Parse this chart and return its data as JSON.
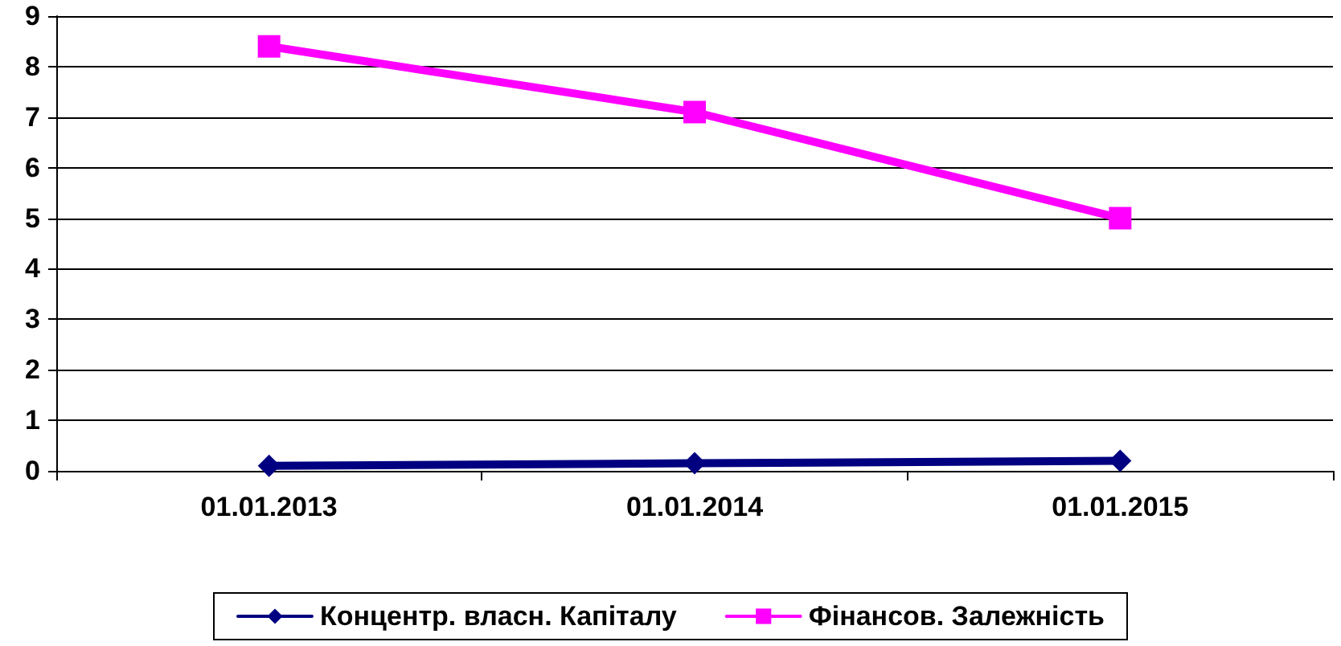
{
  "chart_data": {
    "type": "line",
    "categories": [
      "01.01.2013",
      "01.01.2014",
      "01.01.2015"
    ],
    "series": [
      {
        "name": "Концентр. власн. Капіталу",
        "color": "#000080",
        "values": [
          0.1,
          0.15,
          0.2
        ],
        "marker": "diamond"
      },
      {
        "name": "Фінансов. Залежність",
        "color": "#ff00ff",
        "values": [
          8.4,
          7.1,
          5.0
        ],
        "marker": "square"
      }
    ],
    "ylim": [
      0,
      9
    ],
    "yticks": [
      0,
      1,
      2,
      3,
      4,
      5,
      6,
      7,
      8,
      9
    ],
    "grid": "y",
    "legend": "bottom",
    "line_style": "solid"
  }
}
